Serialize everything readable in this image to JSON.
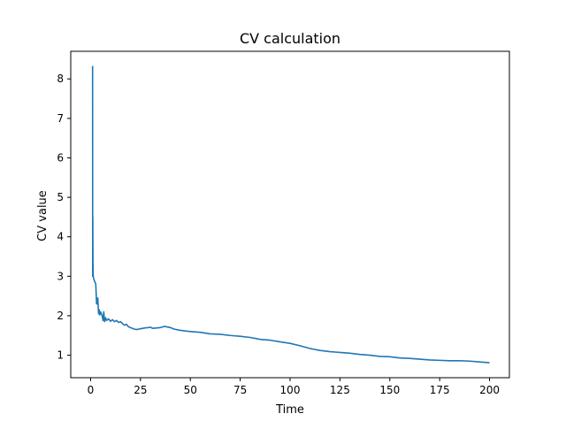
{
  "chart_data": {
    "type": "line",
    "title": "CV calculation",
    "xlabel": "Time",
    "ylabel": "CV value",
    "xlim": [
      -9.95,
      209.95
    ],
    "ylim": [
      0.43,
      8.7
    ],
    "xticks": [
      0,
      25,
      50,
      75,
      100,
      125,
      150,
      175,
      200
    ],
    "yticks": [
      1,
      2,
      3,
      4,
      5,
      6,
      7,
      8
    ],
    "grid": false,
    "legend": "none",
    "series": [
      {
        "color": "#1f77b4",
        "x": [
          1.0,
          1.05,
          1.1,
          1.2,
          1.3,
          1.5,
          1.8,
          2.2,
          2.6,
          3.0,
          3.0,
          3.2,
          3.6,
          4.0,
          4.3,
          4.6,
          5.0,
          5.4,
          5.8,
          6.2,
          6.6,
          7.0,
          7.5,
          8,
          9,
          10,
          11,
          12,
          13,
          14,
          15,
          16,
          17,
          18,
          19,
          20,
          21,
          22,
          23,
          24,
          25,
          27,
          29,
          30,
          31,
          33,
          35,
          37,
          38,
          40,
          42,
          45,
          48,
          50,
          55,
          60,
          65,
          70,
          75,
          80,
          85,
          90,
          95,
          100,
          105,
          110,
          115,
          120,
          125,
          130,
          135,
          140,
          145,
          150,
          155,
          160,
          165,
          170,
          175,
          180,
          185,
          190,
          195,
          200
        ],
        "y": [
          8.33,
          3.0,
          4.5,
          3.3,
          3.0,
          2.95,
          2.9,
          2.85,
          2.8,
          2.3,
          2.45,
          2.3,
          2.45,
          2.05,
          2.15,
          2.02,
          2.1,
          2.05,
          2.0,
          1.88,
          2.1,
          1.85,
          1.95,
          1.88,
          1.92,
          1.86,
          1.9,
          1.85,
          1.88,
          1.83,
          1.85,
          1.8,
          1.76,
          1.78,
          1.72,
          1.7,
          1.68,
          1.66,
          1.65,
          1.66,
          1.67,
          1.69,
          1.7,
          1.71,
          1.68,
          1.69,
          1.7,
          1.73,
          1.72,
          1.7,
          1.66,
          1.63,
          1.61,
          1.6,
          1.58,
          1.54,
          1.53,
          1.5,
          1.48,
          1.45,
          1.4,
          1.38,
          1.34,
          1.3,
          1.24,
          1.17,
          1.12,
          1.09,
          1.07,
          1.05,
          1.02,
          1.0,
          0.97,
          0.96,
          0.93,
          0.92,
          0.9,
          0.88,
          0.87,
          0.86,
          0.86,
          0.85,
          0.83,
          0.81
        ]
      }
    ]
  }
}
